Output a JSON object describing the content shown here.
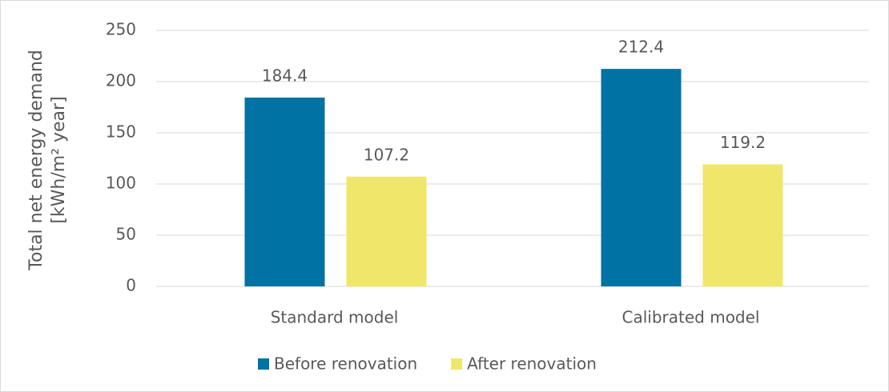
{
  "chart_data": {
    "type": "bar",
    "y_label": [
      "Total net energy demand",
      "[kWh/m² year]"
    ],
    "categories": [
      "Standard model",
      "Calibrated model"
    ],
    "series": [
      {
        "name": "Before renovation",
        "color": "#0072a3",
        "values": [
          184.4,
          212.4
        ]
      },
      {
        "name": "After renovation",
        "color": "#f0e66a",
        "values": [
          107.2,
          119.2
        ]
      }
    ],
    "ylim": [
      0,
      250
    ],
    "yticks": [
      0,
      50,
      100,
      150,
      200,
      250
    ],
    "grid": true
  }
}
